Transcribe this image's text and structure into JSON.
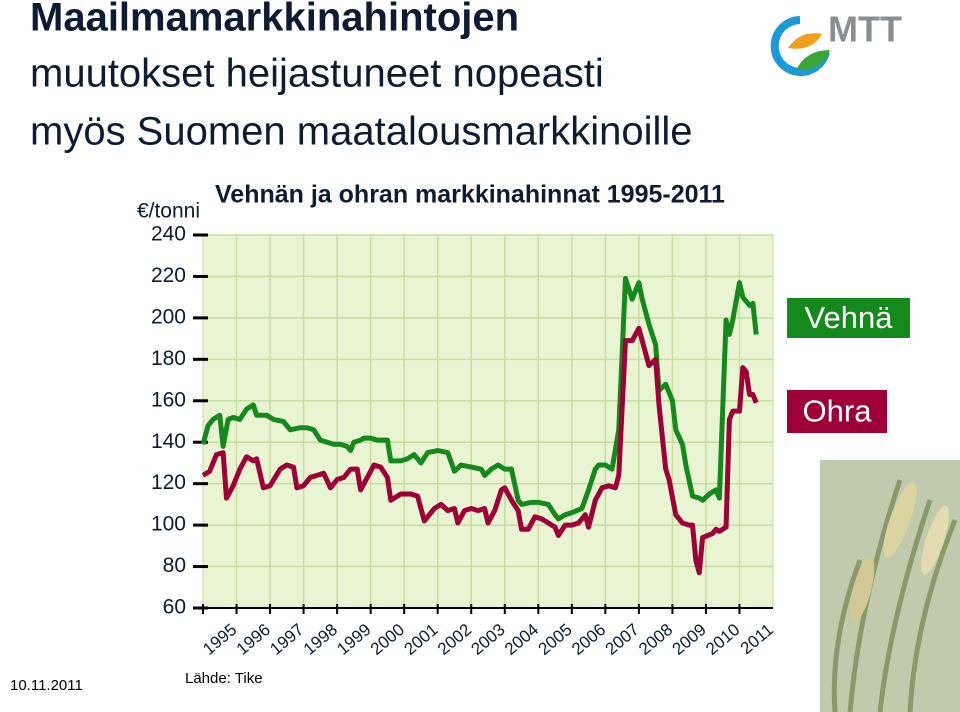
{
  "header": {
    "title": [
      "Maailmamarkkinahintojen",
      "muutokset heijastuneet nopeasti",
      "myös Suomen maatalousmarkkinoille"
    ],
    "logo": "MTT"
  },
  "chart_data": {
    "type": "line",
    "title": "Vehnän ja ohran markkinahinnat 1995-2011",
    "y_label": "€/tonni",
    "ylim": [
      60,
      240
    ],
    "yticks": [
      60,
      80,
      100,
      120,
      140,
      160,
      180,
      200,
      220,
      240
    ],
    "xlim": [
      1995,
      2012
    ],
    "xticks": [
      1995,
      1996,
      1997,
      1998,
      1999,
      2000,
      2001,
      2002,
      2003,
      2004,
      2005,
      2006,
      2007,
      2008,
      2009,
      2010,
      2011
    ],
    "grid": true,
    "series": [
      {
        "name": "Vehnä",
        "color": "#16891c",
        "x": [
          1995.0,
          1995.15,
          1995.3,
          1995.5,
          1995.6,
          1995.75,
          1995.9,
          1996.1,
          1996.3,
          1996.5,
          1996.6,
          1996.9,
          1997.1,
          1997.4,
          1997.6,
          1997.9,
          1998.1,
          1998.3,
          1998.5,
          1998.7,
          1998.9,
          1999.1,
          1999.3,
          1999.4,
          1999.5,
          1999.7,
          1999.8,
          2000.0,
          2000.2,
          2000.5,
          2000.6,
          2000.9,
          2001.1,
          2001.3,
          2001.5,
          2001.7,
          2002.0,
          2002.3,
          2002.5,
          2002.7,
          2003.0,
          2003.3,
          2003.4,
          2003.6,
          2003.8,
          2004.0,
          2004.2,
          2004.4,
          2004.5,
          2004.8,
          2005.0,
          2005.3,
          2005.5,
          2005.6,
          2005.8,
          2006.0,
          2006.3,
          2006.5,
          2006.7,
          2006.8,
          2007.0,
          2007.2,
          2007.4,
          2007.6,
          2007.8,
          2008.0,
          2008.1,
          2008.3,
          2008.5,
          2008.6,
          2008.8,
          2009.0,
          2009.1,
          2009.3,
          2009.4,
          2009.6,
          2009.8,
          2009.9,
          2010.1,
          2010.3,
          2010.4,
          2010.6,
          2010.7,
          2010.8,
          2011.0,
          2011.1,
          2011.3,
          2011.4,
          2011.5
        ],
        "values": [
          139,
          148,
          151,
          153,
          138,
          151,
          152,
          151,
          156,
          158,
          153,
          153,
          151,
          150,
          146,
          147,
          147,
          146,
          141,
          140,
          139,
          139,
          138,
          136,
          140,
          141,
          142,
          142,
          141,
          141,
          131,
          131,
          132,
          134,
          130,
          135,
          136,
          135,
          126,
          129,
          128,
          127,
          124,
          127,
          129,
          127,
          127,
          112,
          110,
          111,
          111,
          110,
          105,
          103,
          105,
          106,
          108,
          117,
          127,
          129,
          129,
          127,
          146,
          219,
          209,
          217,
          209,
          197,
          187,
          165,
          168,
          160,
          146,
          139,
          129,
          114,
          113,
          112,
          115,
          117,
          113,
          199,
          192,
          199,
          217,
          210,
          206,
          207,
          192
        ]
      },
      {
        "name": "Ohra",
        "color": "#9e0038",
        "x": [
          1995.0,
          1995.2,
          1995.4,
          1995.6,
          1995.7,
          1995.9,
          1996.1,
          1996.3,
          1996.5,
          1996.6,
          1996.8,
          1997.0,
          1997.3,
          1997.5,
          1997.7,
          1997.8,
          1998.0,
          1998.2,
          1998.4,
          1998.6,
          1998.8,
          1999.0,
          1999.2,
          1999.4,
          1999.6,
          1999.7,
          1999.9,
          2000.1,
          2000.3,
          2000.5,
          2000.6,
          2000.9,
          2001.2,
          2001.4,
          2001.6,
          2001.9,
          2002.1,
          2002.3,
          2002.5,
          2002.6,
          2002.8,
          2003.0,
          2003.2,
          2003.4,
          2003.5,
          2003.7,
          2003.9,
          2004.0,
          2004.2,
          2004.4,
          2004.5,
          2004.7,
          2004.9,
          2005.1,
          2005.3,
          2005.5,
          2005.6,
          2005.8,
          2006.0,
          2006.2,
          2006.4,
          2006.5,
          2006.7,
          2006.9,
          2007.1,
          2007.3,
          2007.4,
          2007.6,
          2007.8,
          2008.0,
          2008.1,
          2008.3,
          2008.5,
          2008.6,
          2008.8,
          2008.9,
          2009.1,
          2009.3,
          2009.5,
          2009.6,
          2009.7,
          2009.8,
          2009.9,
          2010.2,
          2010.3,
          2010.4,
          2010.6,
          2010.7,
          2010.8,
          2011.0,
          2011.1,
          2011.2,
          2011.3,
          2011.4,
          2011.5
        ],
        "values": [
          124,
          126,
          134,
          135,
          113,
          119,
          127,
          133,
          131,
          132,
          118,
          119,
          127,
          129,
          128,
          118,
          119,
          123,
          124,
          125,
          118,
          122,
          123,
          127,
          127,
          117,
          123,
          129,
          128,
          123,
          112,
          115,
          115,
          114,
          102,
          108,
          110,
          107,
          108,
          101,
          107,
          108,
          107,
          108,
          101,
          107,
          117,
          118,
          112,
          107,
          98,
          98,
          104,
          103,
          101,
          99,
          95,
          100,
          100,
          101,
          105,
          99,
          112,
          118,
          119,
          118,
          124,
          189,
          189,
          195,
          189,
          177,
          180,
          158,
          127,
          122,
          105,
          101,
          100,
          100,
          83,
          77,
          94,
          96,
          98,
          97,
          99,
          151,
          155,
          155,
          176,
          174,
          163,
          163,
          159
        ]
      }
    ]
  },
  "footer": {
    "date": "10.11.2011",
    "source": "Lähde: Tike"
  }
}
